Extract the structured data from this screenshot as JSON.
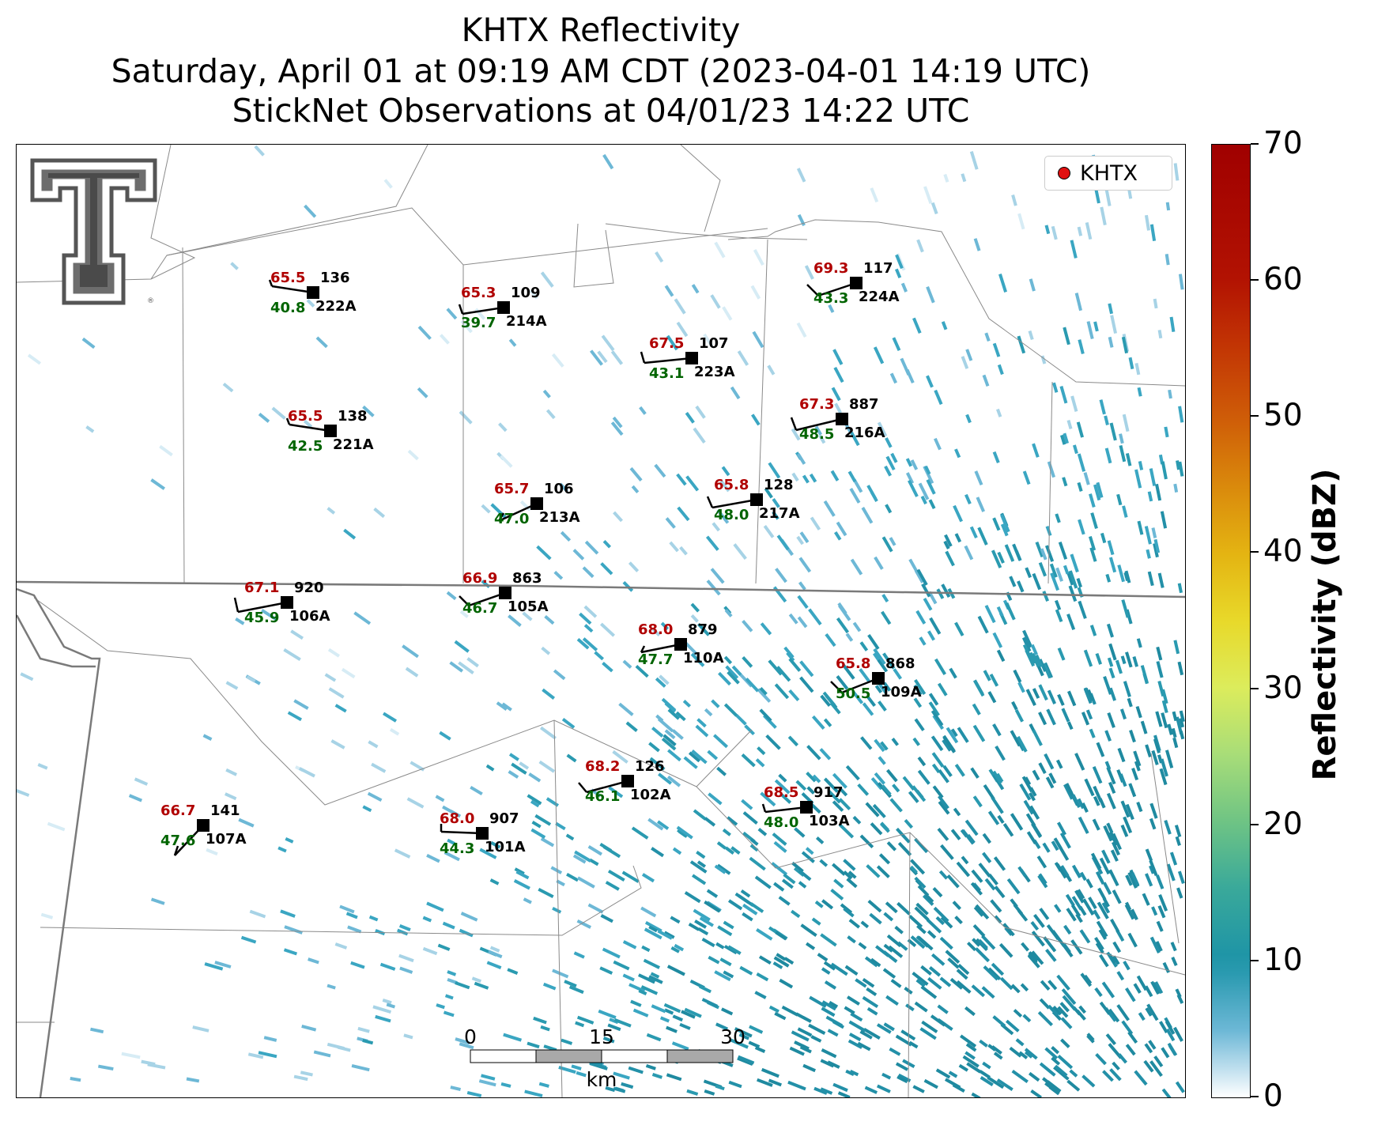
{
  "title": {
    "line1": "KHTX Reflectivity",
    "line2": "Saturday, April 01 at 09:19 AM CDT (2023-04-01 14:19 UTC)",
    "line3": "StickNet Observations at 04/01/23 14:22 UTC"
  },
  "legend": {
    "label": "KHTX",
    "marker_color": "#e01010"
  },
  "colorbar": {
    "title": "Reflectivity (dBZ)",
    "ticks": [
      "0",
      "10",
      "20",
      "30",
      "40",
      "50",
      "60",
      "70"
    ],
    "min": 0,
    "max": 70
  },
  "scale_bar": {
    "labels": [
      "0",
      "15",
      "30"
    ],
    "unit": "km"
  },
  "colors": {
    "temperature": "#b00000",
    "dewpoint": "#006400",
    "radar_dominant": "#2a9ab0"
  },
  "stations": [
    {
      "id": "222A",
      "temp": "65.5",
      "dew": "40.8",
      "pressure": "136"
    },
    {
      "id": "214A",
      "temp": "65.3",
      "dew": "39.7",
      "pressure": "109"
    },
    {
      "id": "224A",
      "temp": "69.3",
      "dew": "43.3",
      "pressure": "117"
    },
    {
      "id": "223A",
      "temp": "67.5",
      "dew": "43.1",
      "pressure": "107"
    },
    {
      "id": "221A",
      "temp": "65.5",
      "dew": "42.5",
      "pressure": "138"
    },
    {
      "id": "216A",
      "temp": "67.3",
      "dew": "48.5",
      "pressure": "887"
    },
    {
      "id": "213A",
      "temp": "65.7",
      "dew": "47.0",
      "pressure": "106"
    },
    {
      "id": "217A",
      "temp": "65.8",
      "dew": "48.0",
      "pressure": "128"
    },
    {
      "id": "106A",
      "temp": "67.1",
      "dew": "45.9",
      "pressure": "920"
    },
    {
      "id": "105A",
      "temp": "66.9",
      "dew": "46.7",
      "pressure": "863"
    },
    {
      "id": "110A",
      "temp": "68.0",
      "dew": "47.7",
      "pressure": "879"
    },
    {
      "id": "109A",
      "temp": "65.8",
      "dew": "50.5",
      "pressure": "868"
    },
    {
      "id": "102A",
      "temp": "68.2",
      "dew": "46.1",
      "pressure": "126"
    },
    {
      "id": "103A",
      "temp": "68.5",
      "dew": "48.0",
      "pressure": "917"
    },
    {
      "id": "107A",
      "temp": "66.7",
      "dew": "47.6",
      "pressure": "141"
    },
    {
      "id": "101A",
      "temp": "68.0",
      "dew": "44.3",
      "pressure": "907"
    }
  ]
}
